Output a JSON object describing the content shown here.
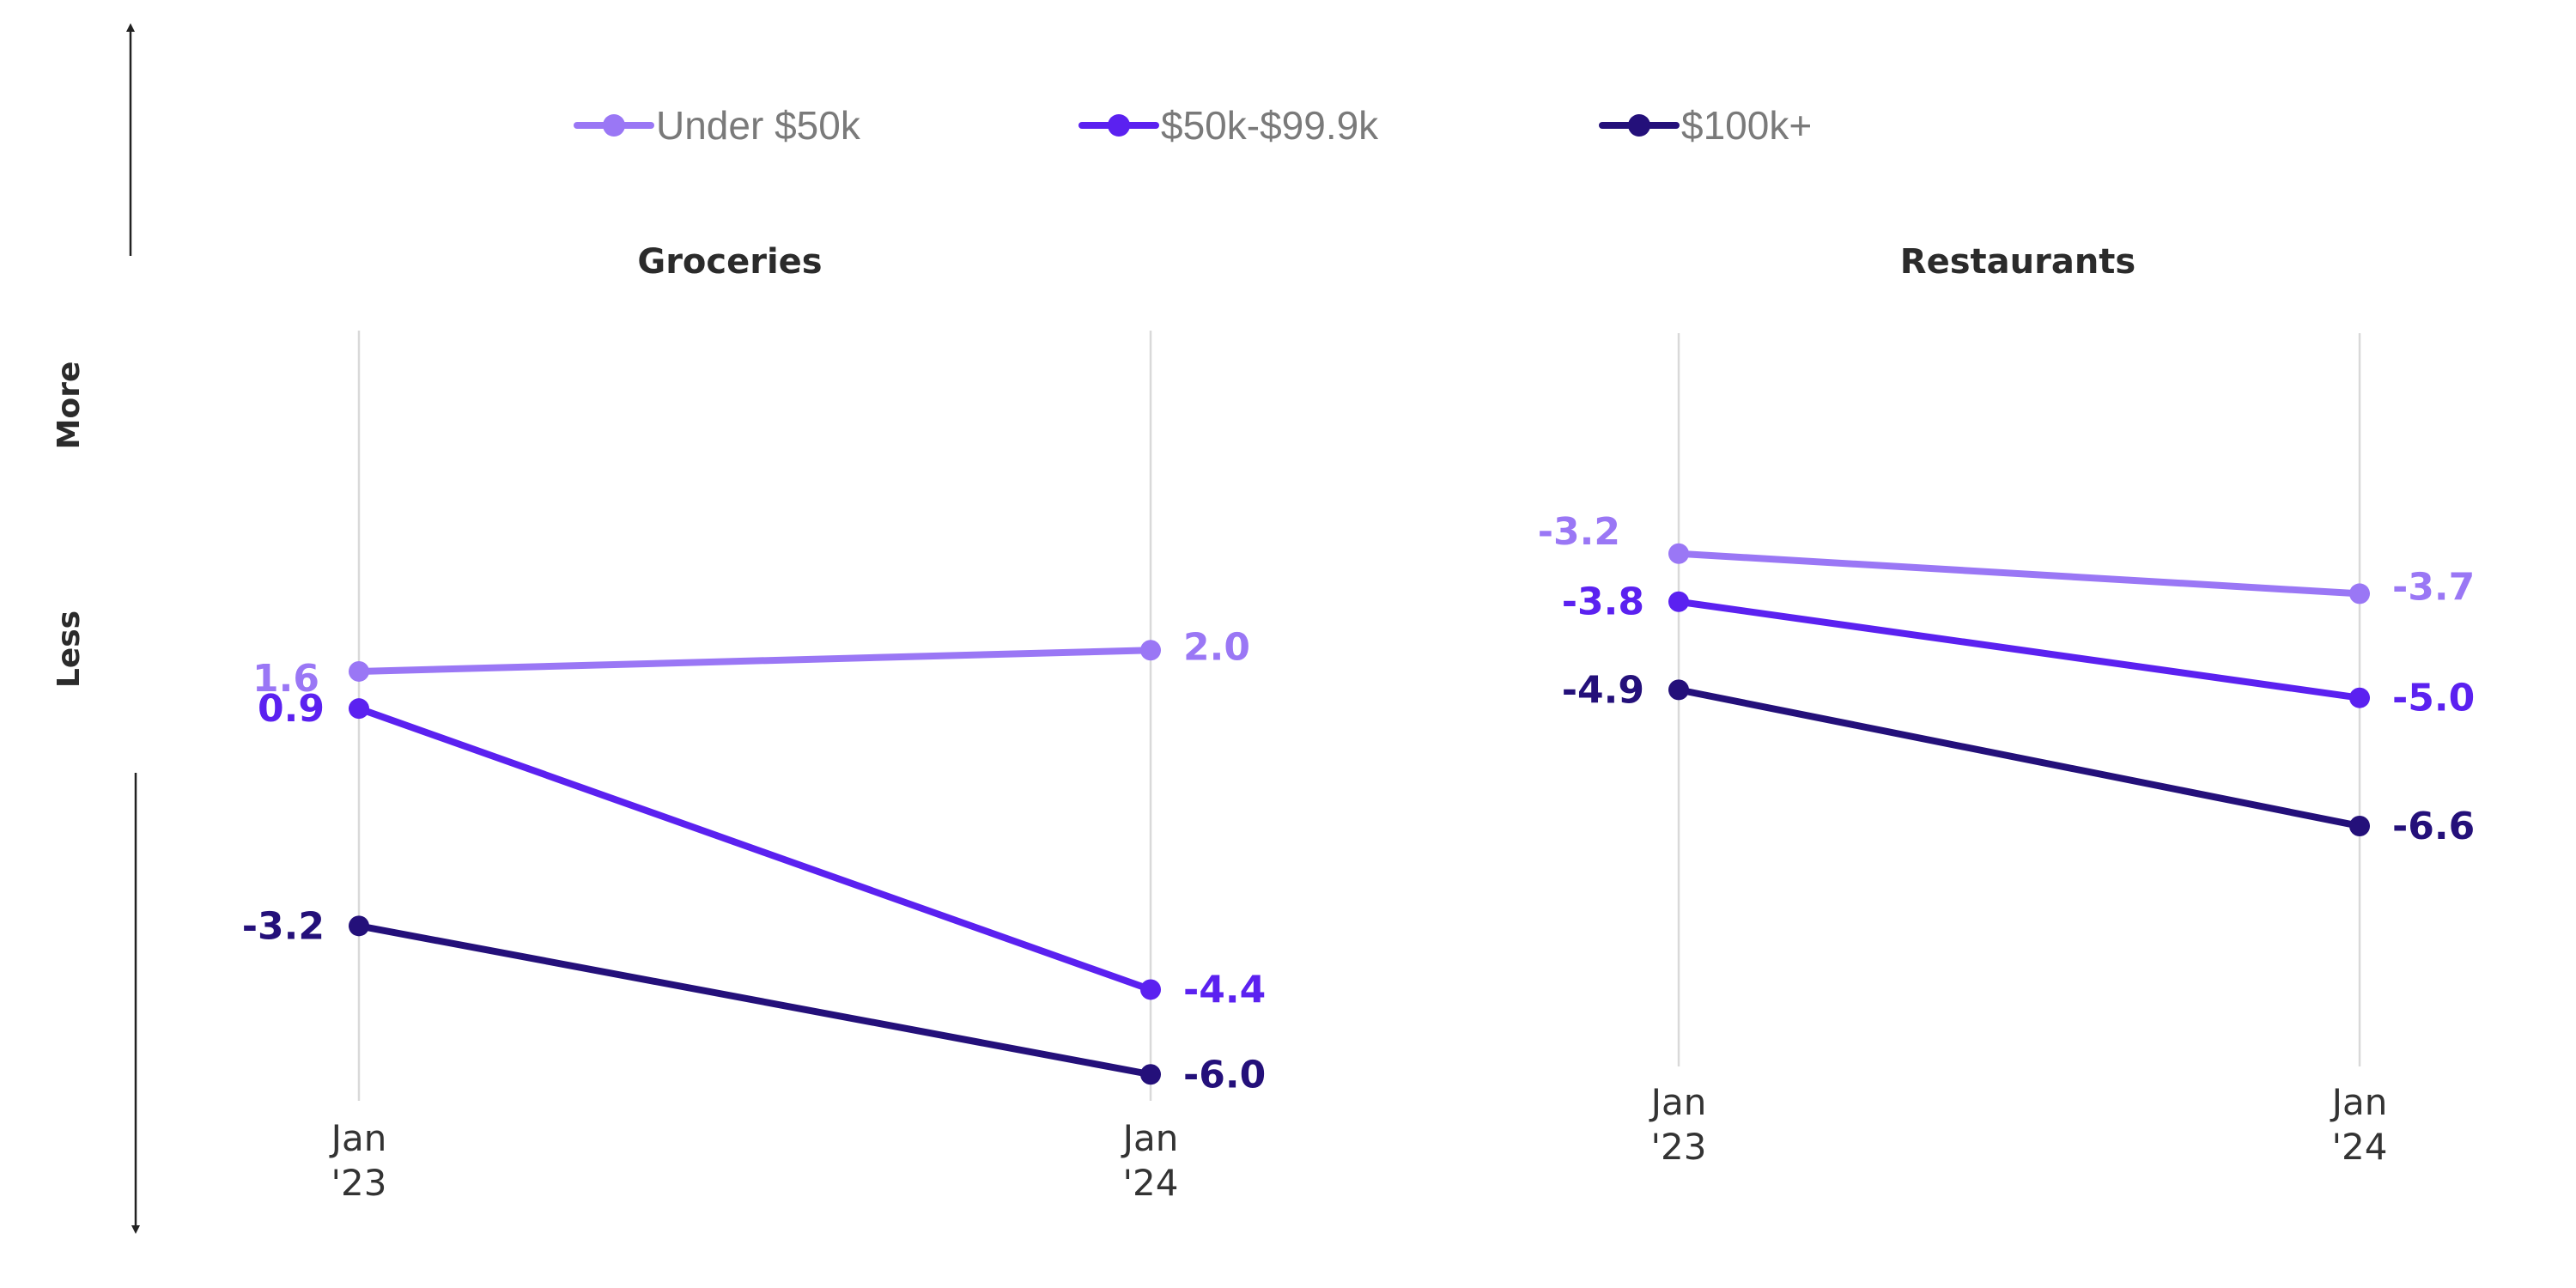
{
  "legend": [
    {
      "name": "Under $50k",
      "color": "#9a77f5"
    },
    {
      "name": "$50k-$99.9k",
      "color": "#5b21f0"
    },
    {
      "name": "$100k+",
      "color": "#24107a"
    }
  ],
  "axis_words": {
    "more": "More",
    "less": "Less"
  },
  "chart_data": [
    {
      "type": "line",
      "title": "Groceries",
      "categories": [
        "Jan '23",
        "Jan '24"
      ],
      "tick_labels": [
        [
          "Jan",
          "'23"
        ],
        [
          "Jan",
          "'24"
        ]
      ],
      "series": [
        {
          "name": "Under $50k",
          "color": "#9a77f5",
          "values": [
            1.6,
            2.0
          ],
          "labels": [
            "1.6",
            "2.0"
          ]
        },
        {
          "name": "$50k-$99.9k",
          "color": "#5b21f0",
          "values": [
            0.9,
            -4.4
          ],
          "labels": [
            "0.9",
            "-4.4"
          ]
        },
        {
          "name": "$100k+",
          "color": "#24107a",
          "values": [
            -3.2,
            -6.0
          ],
          "labels": [
            "-3.2",
            "-6.0"
          ]
        }
      ]
    },
    {
      "type": "line",
      "title": "Restaurants",
      "categories": [
        "Jan '23",
        "Jan '24"
      ],
      "tick_labels": [
        [
          "Jan",
          "'23"
        ],
        [
          "Jan",
          "'24"
        ]
      ],
      "series": [
        {
          "name": "Under $50k",
          "color": "#9a77f5",
          "values": [
            -3.2,
            -3.7
          ],
          "labels": [
            "-3.2",
            "-3.7"
          ]
        },
        {
          "name": "$50k-$99.9k",
          "color": "#5b21f0",
          "values": [
            -3.8,
            -5.0
          ],
          "labels": [
            "-3.8",
            "-5.0"
          ]
        },
        {
          "name": "$100k+",
          "color": "#24107a",
          "values": [
            -4.9,
            -6.6
          ],
          "labels": [
            "-4.9",
            "-6.6"
          ]
        }
      ]
    }
  ]
}
